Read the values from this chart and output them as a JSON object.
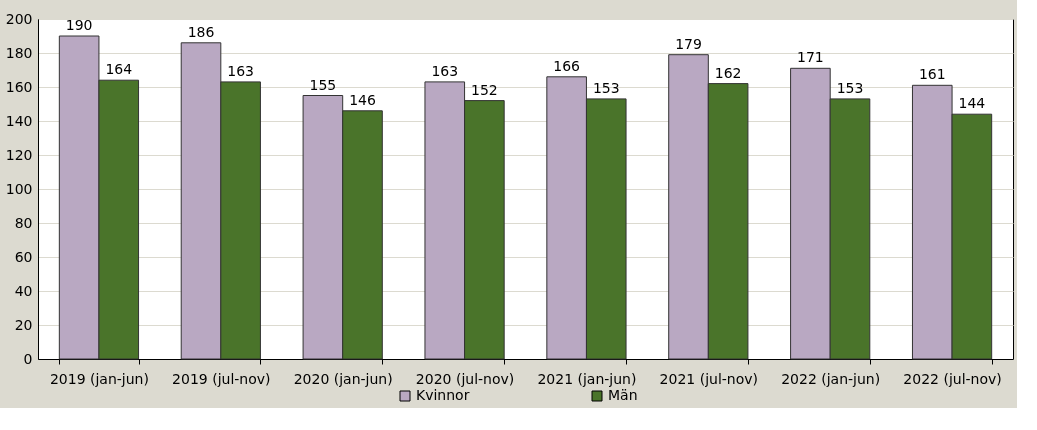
{
  "chart_data": {
    "type": "bar",
    "categories": [
      "2019 (jan-jun)",
      "2019 (jul-nov)",
      "2020 (jan-jun)",
      "2020 (jul-nov)",
      "2021 (jan-jun)",
      "2021 (jul-nov)",
      "2022 (jan-jun)",
      "2022 (jul-nov)"
    ],
    "series": [
      {
        "name": "Kvinnor",
        "color": "#b9a8c2",
        "values": [
          190,
          186,
          155,
          163,
          166,
          179,
          171,
          161
        ]
      },
      {
        "name": "Män",
        "color": "#4a742a",
        "values": [
          164,
          163,
          146,
          152,
          153,
          162,
          153,
          144
        ]
      }
    ],
    "ylim": [
      0,
      200
    ],
    "yticks": [
      0,
      20,
      40,
      60,
      80,
      100,
      120,
      140,
      160,
      180,
      200
    ],
    "grid": "y",
    "legend": "bottom",
    "data_labels": true
  }
}
